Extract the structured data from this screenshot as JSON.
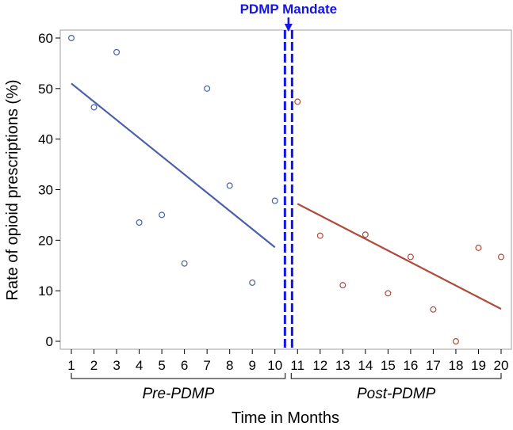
{
  "chart_data": {
    "type": "scatter",
    "title": "",
    "xlabel": "Time in Months",
    "ylabel": "Rate of opioid prescriptions (%)",
    "xlim": [
      1,
      20
    ],
    "ylim": [
      0,
      60
    ],
    "xticks": [
      1,
      2,
      3,
      4,
      5,
      6,
      7,
      8,
      9,
      10,
      11,
      12,
      13,
      14,
      15,
      16,
      17,
      18,
      19,
      20
    ],
    "yticks": [
      0,
      10,
      20,
      30,
      40,
      50,
      60
    ],
    "grid": false,
    "series": [
      {
        "name": "Pre-PDMP",
        "color": "#4a60a8",
        "x": [
          1,
          2,
          3,
          4,
          5,
          6,
          7,
          8,
          9,
          10
        ],
        "y": [
          60.0,
          46.3,
          57.2,
          23.5,
          25.0,
          15.4,
          50.0,
          30.8,
          11.6,
          27.8
        ],
        "trend": {
          "x": [
            1,
            10
          ],
          "y": [
            51.0,
            18.6
          ]
        }
      },
      {
        "name": "Post-PDMP",
        "color": "#b04a3a",
        "x": [
          11,
          12,
          13,
          14,
          15,
          16,
          17,
          18,
          19,
          20
        ],
        "y": [
          47.4,
          20.9,
          11.1,
          21.1,
          9.5,
          16.7,
          6.3,
          0.0,
          18.5,
          16.7
        ],
        "trend": {
          "x": [
            11,
            20
          ],
          "y": [
            27.2,
            6.4
          ]
        }
      }
    ],
    "intervention": {
      "label": "PDMP Mandate",
      "x": 10.6,
      "color": "#1414e6"
    },
    "period_labels": [
      "Pre-PDMP",
      "Post-PDMP"
    ]
  }
}
